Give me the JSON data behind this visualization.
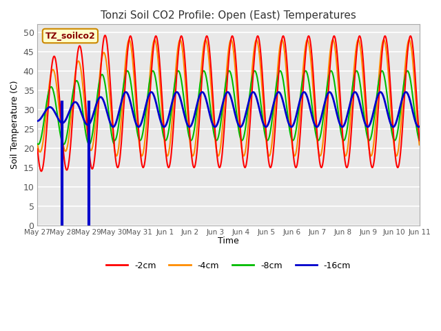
{
  "title": "Tonzi Soil CO2 Profile: Open (East) Temperatures",
  "xlabel": "Time",
  "ylabel": "Soil Temperature (C)",
  "ylim": [
    0,
    52
  ],
  "legend_labels": [
    "-2cm",
    "-4cm",
    "-8cm",
    "-16cm"
  ],
  "legend_colors": [
    "#ff0000",
    "#ff8c00",
    "#00bb00",
    "#0000cc"
  ],
  "watermark_text": "TZ_soilco2",
  "tick_labels": [
    "May 27",
    "May 28",
    "May 29",
    "May 30",
    "May 31",
    "Jun 1",
    "Jun 2",
    "Jun 3",
    "Jun 4",
    "Jun 5",
    "Jun 6",
    "Jun 7",
    "Jun 8",
    "Jun 9",
    "Jun 10",
    "Jun 11"
  ],
  "background_color": "#ffffff",
  "plot_bg_color": "#e8e8e8",
  "grid_color": "#ffffff",
  "yticks": [
    0,
    5,
    10,
    15,
    20,
    25,
    30,
    35,
    40,
    45,
    50
  ]
}
